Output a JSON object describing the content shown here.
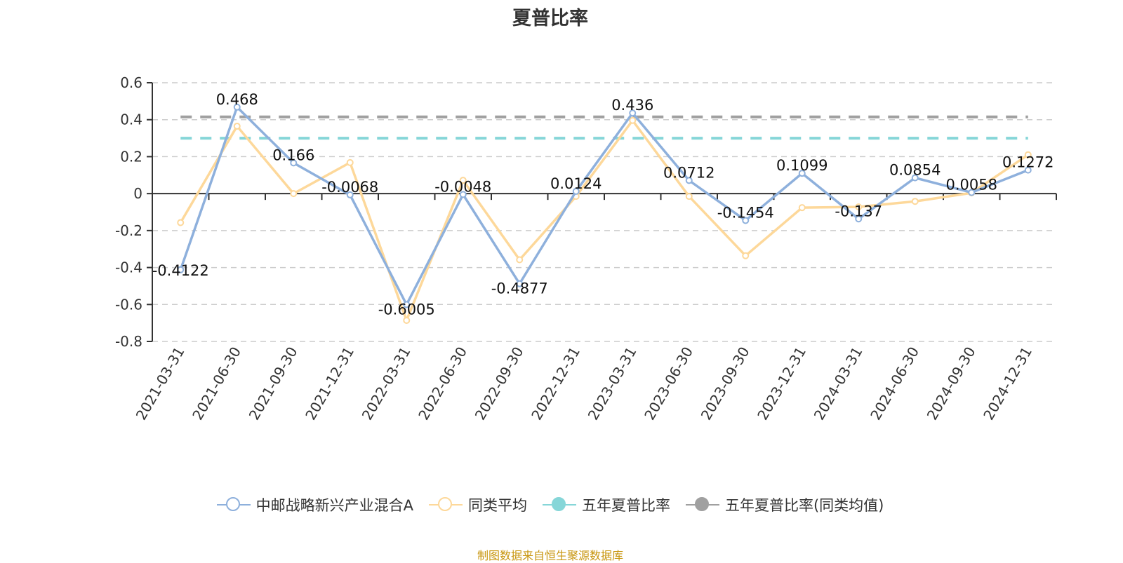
{
  "title": "夏普比率",
  "footer": "制图数据来自恒生聚源数据库",
  "colors": {
    "fund": "#8eb0dc",
    "peer": "#fdd89a",
    "five_year": "#86d6d8",
    "five_year_peer": "#a0a0a0",
    "axis": "#333333",
    "grid": "#cccccc"
  },
  "legend": [
    {
      "label": "中邮战略新兴产业混合A",
      "color": "#8eb0dc",
      "filled": false
    },
    {
      "label": "同类平均",
      "color": "#fdd89a",
      "filled": false
    },
    {
      "label": "五年夏普比率",
      "color": "#86d6d8",
      "filled": true
    },
    {
      "label": "五年夏普比率(同类均值)",
      "color": "#a0a0a0",
      "filled": true
    }
  ],
  "chart_data": {
    "type": "line",
    "title": "夏普比率",
    "xlabel": "",
    "ylabel": "",
    "ylim": [
      -0.8,
      0.6
    ],
    "yticks": [
      0.6,
      0.4,
      0.2,
      0,
      -0.2,
      -0.4,
      -0.6,
      -0.8
    ],
    "grid": true,
    "legend_position": "bottom",
    "categories": [
      "2021-03-31",
      "2021-06-30",
      "2021-09-30",
      "2021-12-31",
      "2022-03-31",
      "2022-06-30",
      "2022-09-30",
      "2022-12-31",
      "2023-03-31",
      "2023-06-30",
      "2023-09-30",
      "2023-12-31",
      "2024-03-31",
      "2024-06-30",
      "2024-09-30",
      "2024-12-31"
    ],
    "series": [
      {
        "name": "中邮战略新兴产业混合A",
        "values": [
          -0.4122,
          0.468,
          0.166,
          -0.0068,
          -0.6005,
          -0.0048,
          -0.4877,
          0.0124,
          0.436,
          0.0712,
          -0.1454,
          0.1099,
          -0.137,
          0.0854,
          0.0058,
          0.1272
        ],
        "labels": [
          "-0.4122",
          "0.468",
          "0.166",
          "-0.0068",
          "-0.6005",
          "-0.0048",
          "-0.4877",
          "0.0124",
          "0.436",
          "0.0712",
          "-0.1454",
          "0.1099",
          "-0.137",
          "0.0854",
          "0.0058",
          "0.1272"
        ]
      },
      {
        "name": "同类平均",
        "values": [
          -0.157,
          0.365,
          0.0,
          0.168,
          -0.686,
          0.072,
          -0.358,
          -0.015,
          0.396,
          -0.015,
          -0.336,
          -0.076,
          -0.072,
          -0.042,
          0.004,
          0.21
        ]
      },
      {
        "name": "五年夏普比率",
        "values": [
          0.3,
          0.3,
          0.3,
          0.3,
          0.3,
          0.3,
          0.3,
          0.3,
          0.3,
          0.3,
          0.3,
          0.3,
          0.3,
          0.3,
          0.3,
          0.3
        ],
        "style": "dashed"
      },
      {
        "name": "五年夏普比率(同类均值)",
        "values": [
          0.415,
          0.415,
          0.415,
          0.415,
          0.415,
          0.415,
          0.415,
          0.415,
          0.415,
          0.415,
          0.415,
          0.415,
          0.415,
          0.415,
          0.415,
          0.415
        ],
        "style": "dashed"
      }
    ]
  }
}
